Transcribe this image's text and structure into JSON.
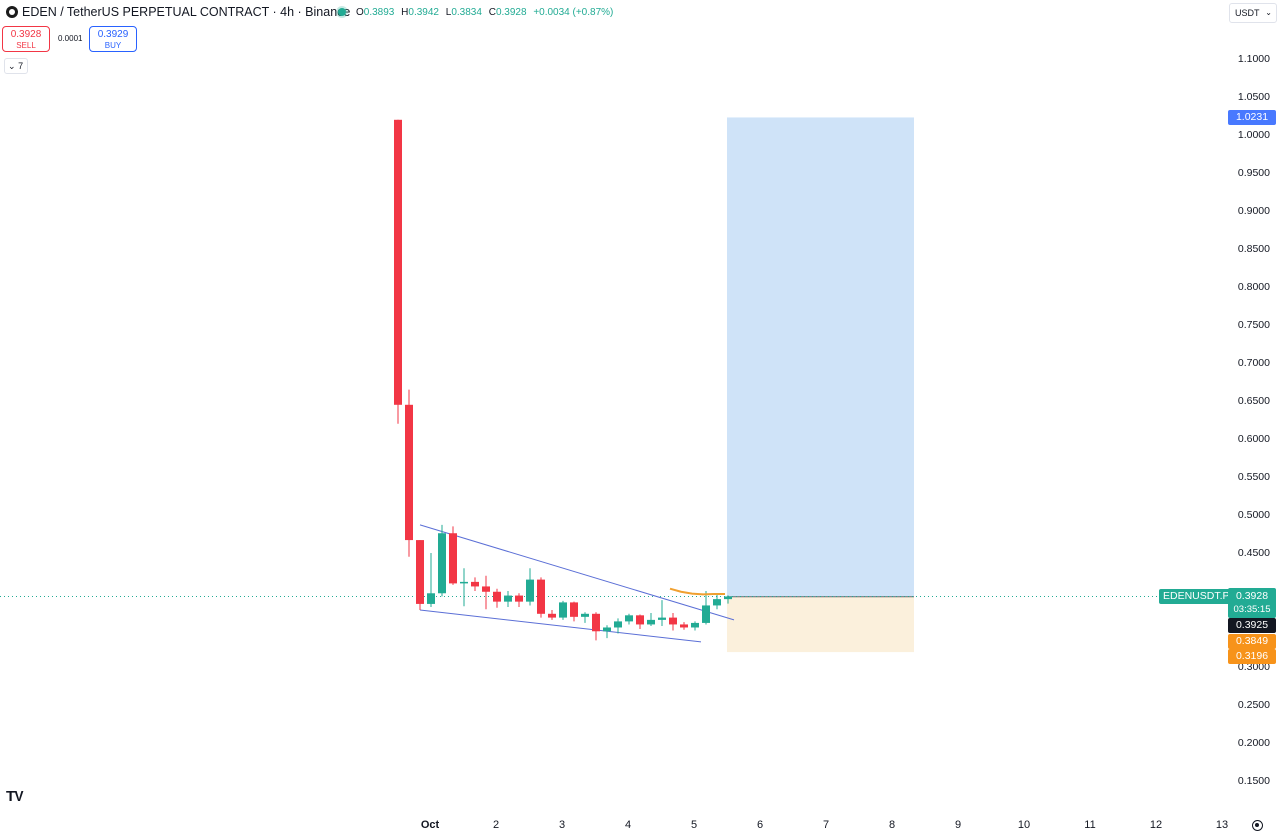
{
  "header": {
    "symbol_title": "EDEN / TetherUS PERPETUAL CONTRACT · 4h · Binance",
    "ohlc": {
      "o_label": "O",
      "o": "0.3893",
      "h_label": "H",
      "h": "0.3942",
      "l_label": "L",
      "l": "0.3834",
      "c_label": "C",
      "c": "0.3928",
      "change": "+0.0034 (+0.87%)"
    },
    "status_color": "#22ab94"
  },
  "trade": {
    "sell_price": "0.3928",
    "sell_label": "SELL",
    "spread": "0.0001",
    "buy_price": "0.3929",
    "buy_label": "BUY"
  },
  "collapse_label": "7",
  "currency": {
    "label": "USDT"
  },
  "price_scale": {
    "ticks": [
      "1.1000",
      "1.0500",
      "1.0000",
      "0.9500",
      "0.9000",
      "0.8500",
      "0.8000",
      "0.7500",
      "0.7000",
      "0.6500",
      "0.6000",
      "0.5500",
      "0.5000",
      "0.4500",
      "0.3000",
      "0.2500",
      "0.2000",
      "0.1500"
    ],
    "tags": {
      "target": "1.0231",
      "last_price": "0.3928",
      "countdown": "03:35:15",
      "entry": "0.3925",
      "level": "0.3849",
      "stop": "0.3196"
    },
    "symbol_label": "EDENUSDT.P"
  },
  "time_scale": {
    "ticks": [
      "Oct",
      "2",
      "3",
      "4",
      "5",
      "6",
      "7",
      "8",
      "9",
      "10",
      "11",
      "12",
      "13"
    ]
  },
  "icons": {
    "logo": "tradingview-logo-icon",
    "settings": "gear-icon"
  },
  "colors": {
    "up": "#22ab94",
    "down": "#f23645",
    "target_zone": "#cfe3f8",
    "stop_zone": "#fbf0dc",
    "trendline": "#5b6fd6",
    "ma": "#f0a030"
  },
  "chart_data": {
    "type": "candlestick",
    "interval": "4h",
    "candles": [
      {
        "o": 1.02,
        "h": 1.02,
        "l": 0.62,
        "c": 0.645
      },
      {
        "o": 0.645,
        "h": 0.665,
        "l": 0.445,
        "c": 0.467
      },
      {
        "o": 0.467,
        "h": 0.467,
        "l": 0.375,
        "c": 0.383
      },
      {
        "o": 0.383,
        "h": 0.45,
        "l": 0.379,
        "c": 0.397
      },
      {
        "o": 0.397,
        "h": 0.487,
        "l": 0.393,
        "c": 0.476
      },
      {
        "o": 0.476,
        "h": 0.485,
        "l": 0.408,
        "c": 0.41
      },
      {
        "o": 0.41,
        "h": 0.43,
        "l": 0.38,
        "c": 0.412
      },
      {
        "o": 0.412,
        "h": 0.418,
        "l": 0.4,
        "c": 0.406
      },
      {
        "o": 0.406,
        "h": 0.42,
        "l": 0.376,
        "c": 0.399
      },
      {
        "o": 0.399,
        "h": 0.403,
        "l": 0.378,
        "c": 0.386
      },
      {
        "o": 0.386,
        "h": 0.4,
        "l": 0.379,
        "c": 0.394
      },
      {
        "o": 0.394,
        "h": 0.397,
        "l": 0.379,
        "c": 0.386
      },
      {
        "o": 0.386,
        "h": 0.43,
        "l": 0.381,
        "c": 0.415
      },
      {
        "o": 0.415,
        "h": 0.418,
        "l": 0.365,
        "c": 0.37
      },
      {
        "o": 0.37,
        "h": 0.375,
        "l": 0.362,
        "c": 0.365
      },
      {
        "o": 0.365,
        "h": 0.387,
        "l": 0.362,
        "c": 0.385
      },
      {
        "o": 0.385,
        "h": 0.386,
        "l": 0.36,
        "c": 0.366
      },
      {
        "o": 0.366,
        "h": 0.372,
        "l": 0.358,
        "c": 0.37
      },
      {
        "o": 0.37,
        "h": 0.372,
        "l": 0.335,
        "c": 0.347
      },
      {
        "o": 0.347,
        "h": 0.355,
        "l": 0.338,
        "c": 0.352
      },
      {
        "o": 0.352,
        "h": 0.364,
        "l": 0.344,
        "c": 0.36
      },
      {
        "o": 0.36,
        "h": 0.37,
        "l": 0.356,
        "c": 0.368
      },
      {
        "o": 0.368,
        "h": 0.369,
        "l": 0.35,
        "c": 0.356
      },
      {
        "o": 0.356,
        "h": 0.371,
        "l": 0.354,
        "c": 0.362
      },
      {
        "o": 0.362,
        "h": 0.388,
        "l": 0.354,
        "c": 0.365
      },
      {
        "o": 0.365,
        "h": 0.371,
        "l": 0.348,
        "c": 0.356
      },
      {
        "o": 0.356,
        "h": 0.359,
        "l": 0.349,
        "c": 0.352
      },
      {
        "o": 0.352,
        "h": 0.36,
        "l": 0.348,
        "c": 0.358
      },
      {
        "o": 0.358,
        "h": 0.4,
        "l": 0.356,
        "c": 0.381
      },
      {
        "o": 0.381,
        "h": 0.395,
        "l": 0.376,
        "c": 0.3893
      },
      {
        "o": 0.3893,
        "h": 0.3942,
        "l": 0.3834,
        "c": 0.3928
      }
    ],
    "position": {
      "entry": 0.3925,
      "target": 1.0231,
      "stop": 0.3196
    },
    "trendlines": [
      {
        "from": [
          0,
          0.487
        ],
        "to": [
          28,
          0.362
        ]
      },
      {
        "from": [
          0,
          0.375
        ],
        "to": [
          25,
          0.333
        ]
      }
    ],
    "moving_average": [
      [
        24,
        0.403
      ],
      [
        25,
        0.399
      ],
      [
        26,
        0.3965
      ],
      [
        27,
        0.3955
      ],
      [
        28,
        0.396
      ],
      [
        29,
        0.396
      ]
    ]
  }
}
